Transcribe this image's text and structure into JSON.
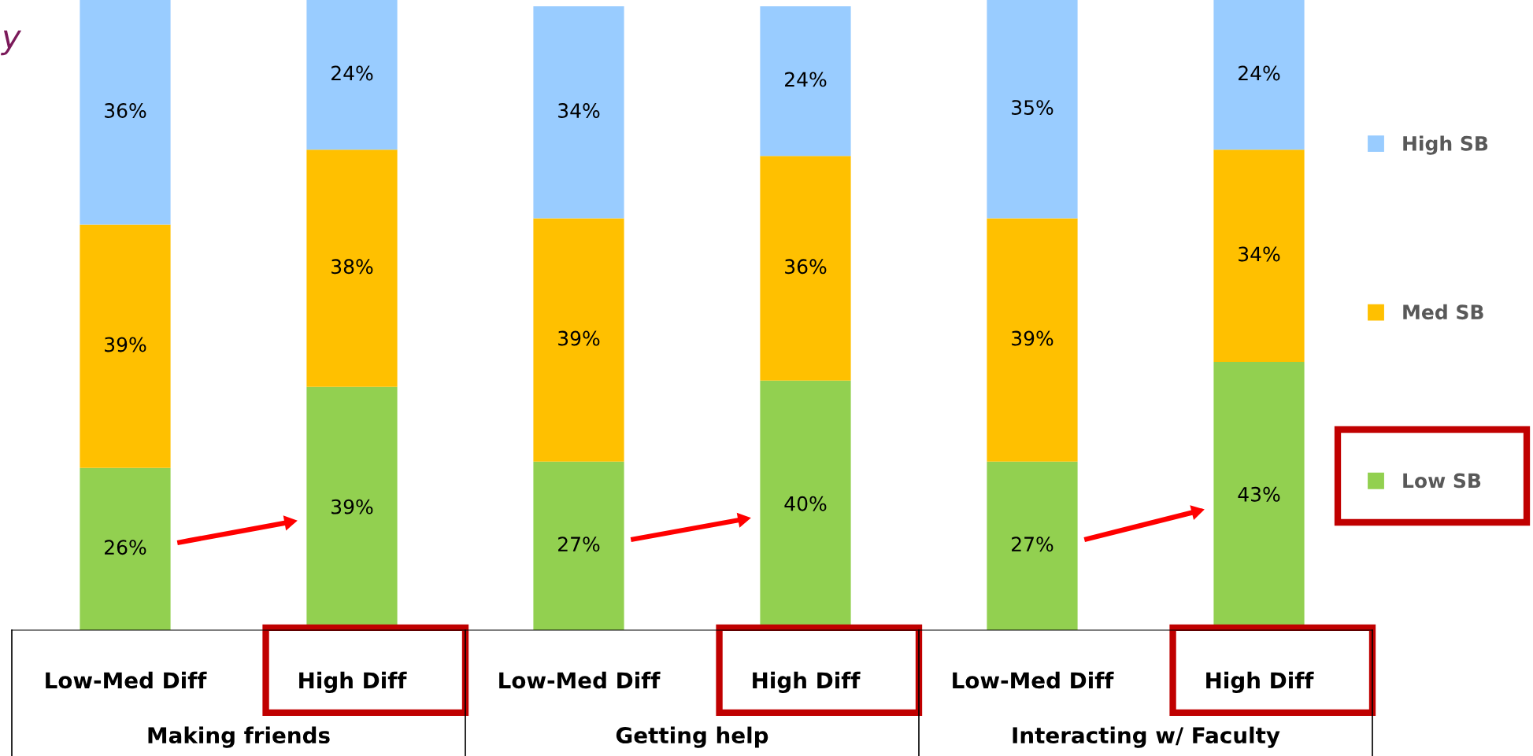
{
  "chart_data": {
    "type": "bar",
    "title": "y",
    "stacked": true,
    "legend": "right",
    "grid": false,
    "categories": [
      "Low-Med Diff",
      "High Diff",
      "Low-Med Diff",
      "High Diff",
      "Low-Med Diff",
      "High Diff"
    ],
    "series": [
      {
        "name": "Low SB",
        "color": "#92d050",
        "values": [
          26,
          39,
          27,
          40,
          27,
          43
        ],
        "value_labels": [
          "26%",
          "39%",
          "27%",
          "40%",
          "27%",
          "43%"
        ]
      },
      {
        "name": "Med SB",
        "color": "#ffc000",
        "values": [
          39,
          38,
          39,
          36,
          39,
          34
        ],
        "value_labels": [
          "39%",
          "38%",
          "39%",
          "36%",
          "39%",
          "34%"
        ]
      },
      {
        "name": "High SB",
        "color": "#99ccff",
        "values": [
          36,
          24,
          34,
          24,
          35,
          24
        ],
        "value_labels": [
          "36%",
          "24%",
          "34%",
          "24%",
          "35%",
          "24%"
        ]
      }
    ],
    "annotations": [
      "Making friends",
      "Getting help",
      "Interacting w/ Faculty"
    ]
  }
}
